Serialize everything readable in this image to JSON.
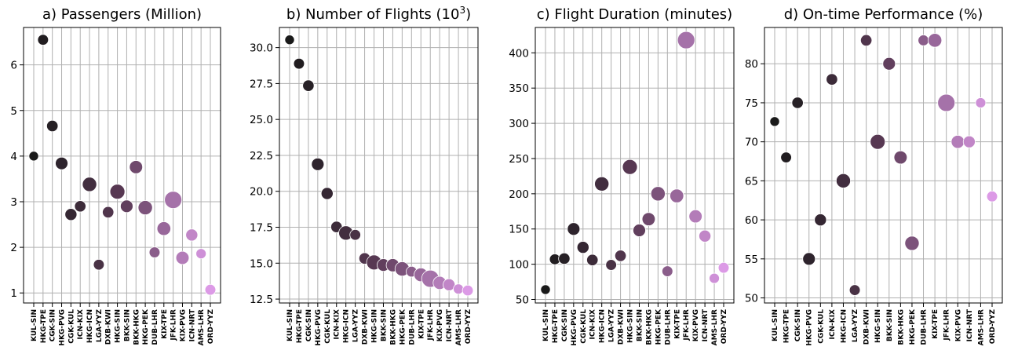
{
  "chart_data": [
    {
      "type": "scatter",
      "title": "a) Passengers (Million)",
      "categories": [
        "KUL-SIN",
        "HKG-TPE",
        "CGK-SIN",
        "HKG-PVG",
        "CGK-KUL",
        "ICN-KIX",
        "HKG-ICN",
        "LGA-YYZ",
        "DXB-KWI",
        "HKG-SIN",
        "BKK-SIN",
        "BKK-HKG",
        "HKG-PEK",
        "DUB-LHR",
        "KIX-TPE",
        "JFK-LHR",
        "KIX-PVG",
        "ICN-NRT",
        "AMS-LHR",
        "ORD-YYZ"
      ],
      "values": [
        4.0,
        6.55,
        4.66,
        3.84,
        2.72,
        2.9,
        3.38,
        1.62,
        2.77,
        3.22,
        2.9,
        3.76,
        2.87,
        1.89,
        2.41,
        3.04,
        1.77,
        2.27,
        1.86,
        1.07
      ],
      "yticks": [
        1,
        2,
        3,
        4,
        5,
        6
      ],
      "ylim": [
        0.78,
        6.82
      ],
      "grid": true
    },
    {
      "type": "scatter",
      "title": "b) Number of Flights (10",
      "title_sup": "3",
      "title_end": ")",
      "categories": [
        "KUL-SIN",
        "HKG-TPE",
        "CGK-SIN",
        "HKG-PVG",
        "CGK-KUL",
        "ICN-KIX",
        "HKG-ICN",
        "LGA-YYZ",
        "DXB-KWI",
        "HKG-SIN",
        "BKK-SIN",
        "BKK-HKG",
        "HKG-PEK",
        "DUB-LHR",
        "KIX-TPE",
        "JFK-LHR",
        "KIX-PVG",
        "ICN-NRT",
        "AMS-LHR",
        "ORD-YYZ"
      ],
      "values": [
        30.54,
        28.88,
        27.35,
        21.88,
        19.85,
        17.52,
        17.1,
        16.97,
        15.33,
        15.05,
        14.87,
        14.86,
        14.6,
        14.41,
        14.19,
        13.92,
        13.63,
        13.5,
        13.2,
        13.1
      ],
      "yticks": [
        12.5,
        15.0,
        17.5,
        20.0,
        22.5,
        25.0,
        27.5,
        30.0
      ],
      "ytick_labels": [
        "12.5",
        "15.0",
        "17.5",
        "20.0",
        "22.5",
        "25.0",
        "27.5",
        "30.0"
      ],
      "ylim": [
        12.23,
        31.4
      ],
      "grid": true
    },
    {
      "type": "scatter",
      "title": "c) Flight Duration (minutes)",
      "categories": [
        "KUL-SIN",
        "HKG-TPE",
        "CGK-SIN",
        "HKG-PVG",
        "CGK-KUL",
        "ICN-KIX",
        "HKG-ICN",
        "LGA-YYZ",
        "DXB-KWI",
        "HKG-SIN",
        "BKK-SIN",
        "BKK-HKG",
        "HKG-PEK",
        "DUB-LHR",
        "KIX-TPE",
        "JFK-LHR",
        "KIX-PVG",
        "ICN-NRT",
        "AMS-LHR",
        "ORD-YYZ"
      ],
      "values": [
        64,
        107,
        108,
        150,
        124,
        106,
        214,
        99,
        112,
        238,
        148,
        164,
        200,
        90,
        197,
        418,
        168,
        140,
        80,
        95
      ],
      "yticks": [
        50,
        100,
        150,
        200,
        250,
        300,
        350,
        400
      ],
      "ylim": [
        45,
        436
      ],
      "grid": true
    },
    {
      "type": "scatter",
      "title": "d) On-time Performance (%)",
      "categories": [
        "KUL-SIN",
        "HKG-TPE",
        "CGK-SIN",
        "HKG-PVG",
        "CGK-KUL",
        "ICN-KIX",
        "HKG-ICN",
        "LGA-YYZ",
        "DXB-KWI",
        "HKG-SIN",
        "BKK-SIN",
        "BKK-HKG",
        "HKG-PEK",
        "DUB-LHR",
        "KIX-TPE",
        "JFK-LHR",
        "KIX-PVG",
        "ICN-NRT",
        "AMS-LHR",
        "ORD-YYZ"
      ],
      "values": [
        72.6,
        68,
        75,
        55,
        60,
        78,
        65,
        51,
        83,
        70,
        80,
        68,
        57,
        83,
        83,
        75,
        70,
        70,
        75,
        63
      ],
      "yticks": [
        50,
        55,
        60,
        65,
        70,
        75,
        80
      ],
      "ylim": [
        49.35,
        84.65
      ],
      "grid": true
    }
  ],
  "marker_size_by_route": [
    0.35,
    0.45,
    0.5,
    0.6,
    0.55,
    0.5,
    0.75,
    0.45,
    0.5,
    0.8,
    0.6,
    0.65,
    0.75,
    0.45,
    0.7,
    1.0,
    0.65,
    0.55,
    0.4,
    0.45
  ],
  "colors": {
    "dark": "#1a1a1a",
    "mid": "#5a3a55",
    "light": "#dc9ae6"
  }
}
